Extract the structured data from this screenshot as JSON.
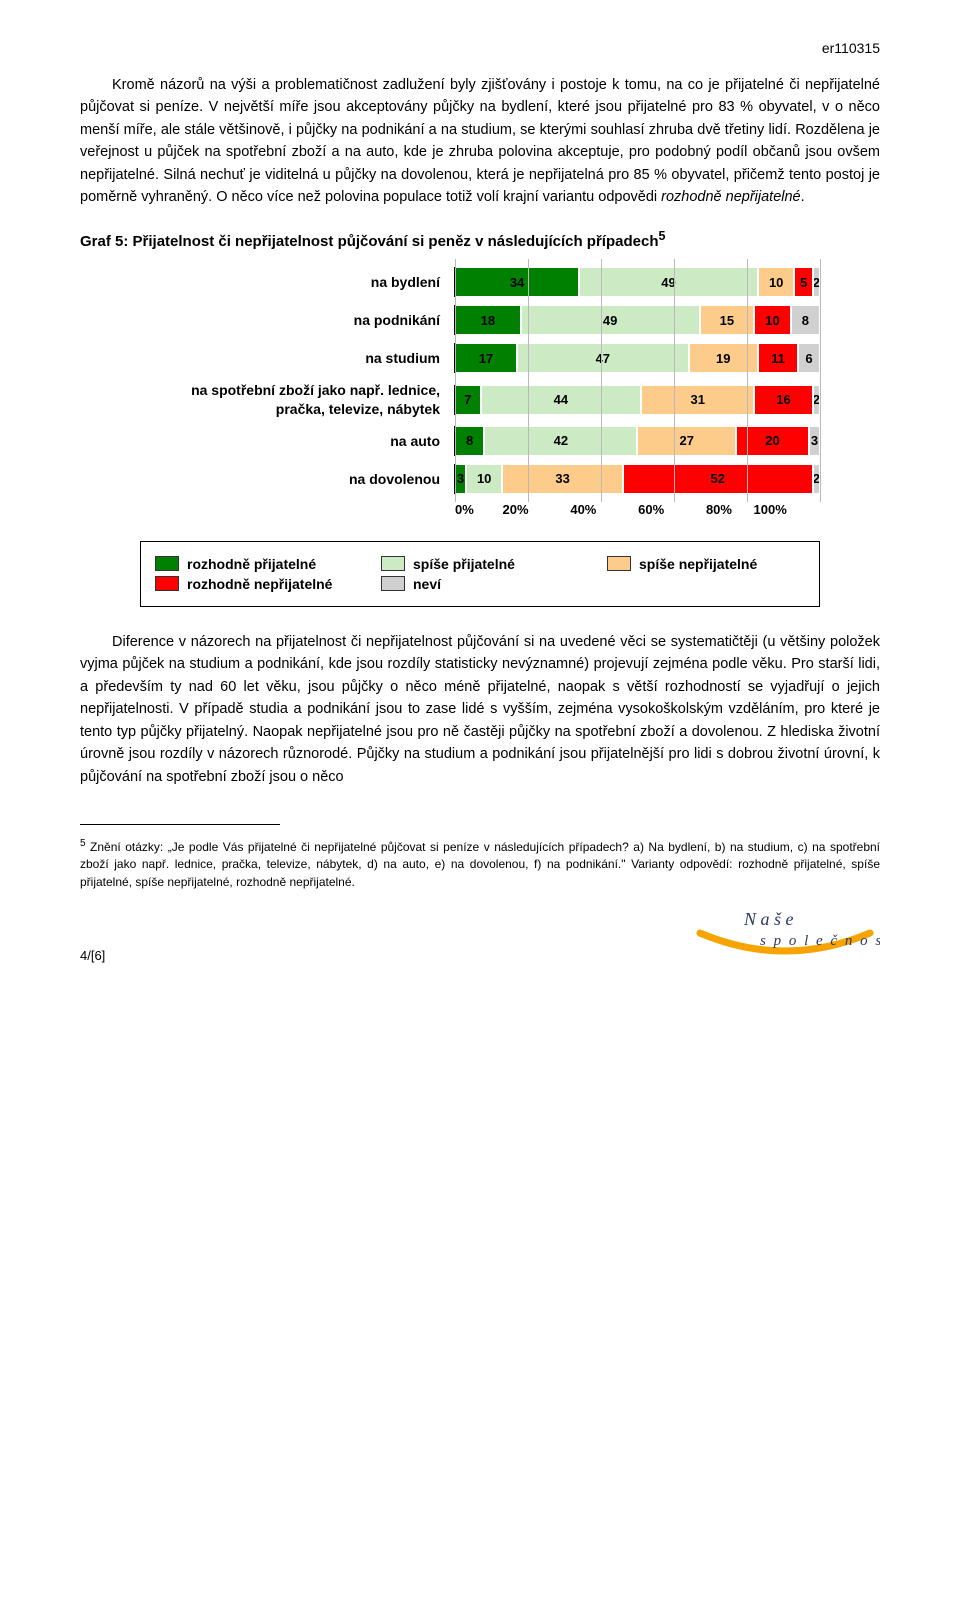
{
  "doc_id": "er110315",
  "para1_a": "Kromě názorů na výši a problematičnost zadlužení byly zjišťovány i postoje k tomu, na co je přijatelné či nepřijatelné půjčovat si peníze. V největší míře jsou akceptovány půjčky na bydlení, které jsou přijatelné pro 83 % obyvatel, v o něco menší míře, ale stále většinově, i půjčky na podnikání a na studium, se kterými souhlasí zhruba dvě třetiny lidí. Rozdělena je veřejnost u půjček na spotřební zboží a na auto, kde je zhruba polovina akceptuje, pro podobný podíl občanů jsou ovšem nepřijatelné. Silná nechuť je viditelná u půjčky na dovolenou, která je nepřijatelná pro 85 % obyvatel, přičemž tento postoj je poměrně vyhraněný. O něco více než polovina populace totiž volí krajní variantu odpovědi ",
  "para1_b": "rozhodně nepřijatelné",
  "para1_c": ".",
  "chart_title": "Graf 5: Přijatelnost či nepřijatelnost půjčování si peněz v následujících případech",
  "chart_sup": "5",
  "chart": {
    "categories": [
      "na bydlení",
      "na podnikání",
      "na studium",
      "na spotřební zboží jako např. lednice, pračka, televize, nábytek",
      "na auto",
      "na dovolenou"
    ],
    "series_labels": [
      "rozhodně přijatelné",
      "spíše přijatelné",
      "spíše nepřijatelné",
      "rozhodně nepřijatelné",
      "neví"
    ],
    "series_colors": [
      "#008000",
      "#ccebc5",
      "#fdcc8a",
      "#ff0000",
      "#d0d0d0"
    ],
    "text_colors": [
      "#000000",
      "#000000",
      "#000000",
      "#000000",
      "#000000"
    ],
    "rows": [
      [
        34,
        49,
        10,
        5,
        2
      ],
      [
        18,
        49,
        15,
        10,
        8
      ],
      [
        17,
        47,
        19,
        11,
        6
      ],
      [
        7,
        44,
        31,
        16,
        2
      ],
      [
        8,
        42,
        27,
        20,
        3
      ],
      [
        3,
        10,
        33,
        52,
        2
      ]
    ],
    "x_ticks": [
      "0%",
      "20%",
      "40%",
      "60%",
      "80%",
      "100%"
    ],
    "grid_positions_pct": [
      0,
      20,
      40,
      60,
      80,
      100
    ]
  },
  "legend": {
    "items": [
      {
        "color": "#008000",
        "label": "rozhodně přijatelné"
      },
      {
        "color": "#ccebc5",
        "label": "spíše přijatelné"
      },
      {
        "color": "#fdcc8a",
        "label": "spíše nepřijatelné"
      },
      {
        "color": "#ff0000",
        "label": "rozhodně nepřijatelné"
      },
      {
        "color": "#d0d0d0",
        "label": "neví"
      }
    ]
  },
  "para2": "Diference v názorech na přijatelnost či nepřijatelnost půjčování si na uvedené věci se systematičtěji (u většiny položek vyjma půjček na studium a podnikání, kde jsou rozdíly statisticky nevýznamné) projevují zejména podle věku. Pro starší lidi, a především ty nad 60 let věku, jsou půjčky o něco méně přijatelné, naopak s větší rozhodností se vyjadřují o jejich nepřijatelnosti. V případě studia a podnikání jsou to zase lidé s vyšším, zejména vysokoškolským vzděláním, pro které je tento typ půjčky přijatelný. Naopak nepřijatelné jsou pro ně častěji půjčky na spotřební zboží a dovolenou. Z hlediska životní úrovně jsou rozdíly v názorech různorodé. Půjčky na studium a podnikání jsou přijatelnější pro lidi s dobrou životní úrovní, k půjčování na spotřební zboží jsou o něco",
  "footnote_sup": "5",
  "footnote": " Znění otázky: „Je podle Vás přijatelné či nepřijatelné půjčovat si peníze v následujících případech? a) Na bydlení, b) na studium, c) na spotřební zboží jako např. lednice, pračka, televize, nábytek, d) na auto, e) na dovolenou, f) na podnikání.\" Varianty odpovědí: rozhodně přijatelné, spíše přijatelné, spíše nepřijatelné, rozhodně nepřijatelné.",
  "page_num": "4/[6]",
  "logo": {
    "text_top": "Naše",
    "text_bottom": "společnost",
    "arc_color": "#f7a400",
    "text_color": "#2b3b5c"
  }
}
